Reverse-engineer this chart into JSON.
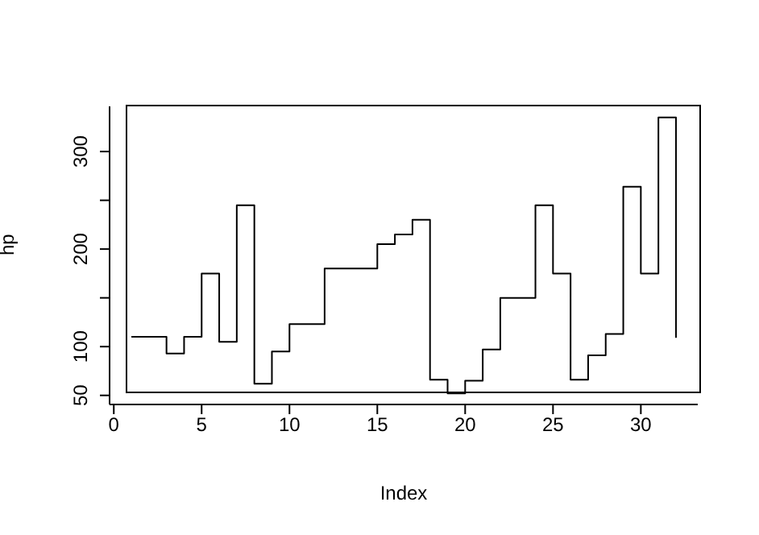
{
  "chart_data": {
    "type": "step",
    "xlabel": "Index",
    "ylabel": "hp",
    "x": [
      1,
      2,
      3,
      4,
      5,
      6,
      7,
      8,
      9,
      10,
      11,
      12,
      13,
      14,
      15,
      16,
      17,
      18,
      19,
      20,
      21,
      22,
      23,
      24,
      25,
      26,
      27,
      28,
      29,
      30,
      31,
      32
    ],
    "series": [
      {
        "color": "#000000",
        "values": [
          110,
          110,
          93,
          110,
          175,
          105,
          245,
          62,
          95,
          123,
          123,
          180,
          180,
          180,
          205,
          215,
          230,
          66,
          52,
          65,
          97,
          150,
          150,
          245,
          175,
          66,
          91,
          113,
          264,
          175,
          335,
          109
        ]
      }
    ],
    "xlim": [
      -0.24,
      33.24
    ],
    "xticks": [
      0,
      5,
      10,
      15,
      20,
      25,
      30
    ],
    "ylim": [
      40.68,
      346.32
    ],
    "yticks": [
      50,
      100,
      {
        "value": 150,
        "label": null
      },
      200,
      {
        "value": 250,
        "label": null
      },
      300
    ],
    "grid": false,
    "legend": false,
    "marker": "none",
    "line_style": "solid"
  }
}
